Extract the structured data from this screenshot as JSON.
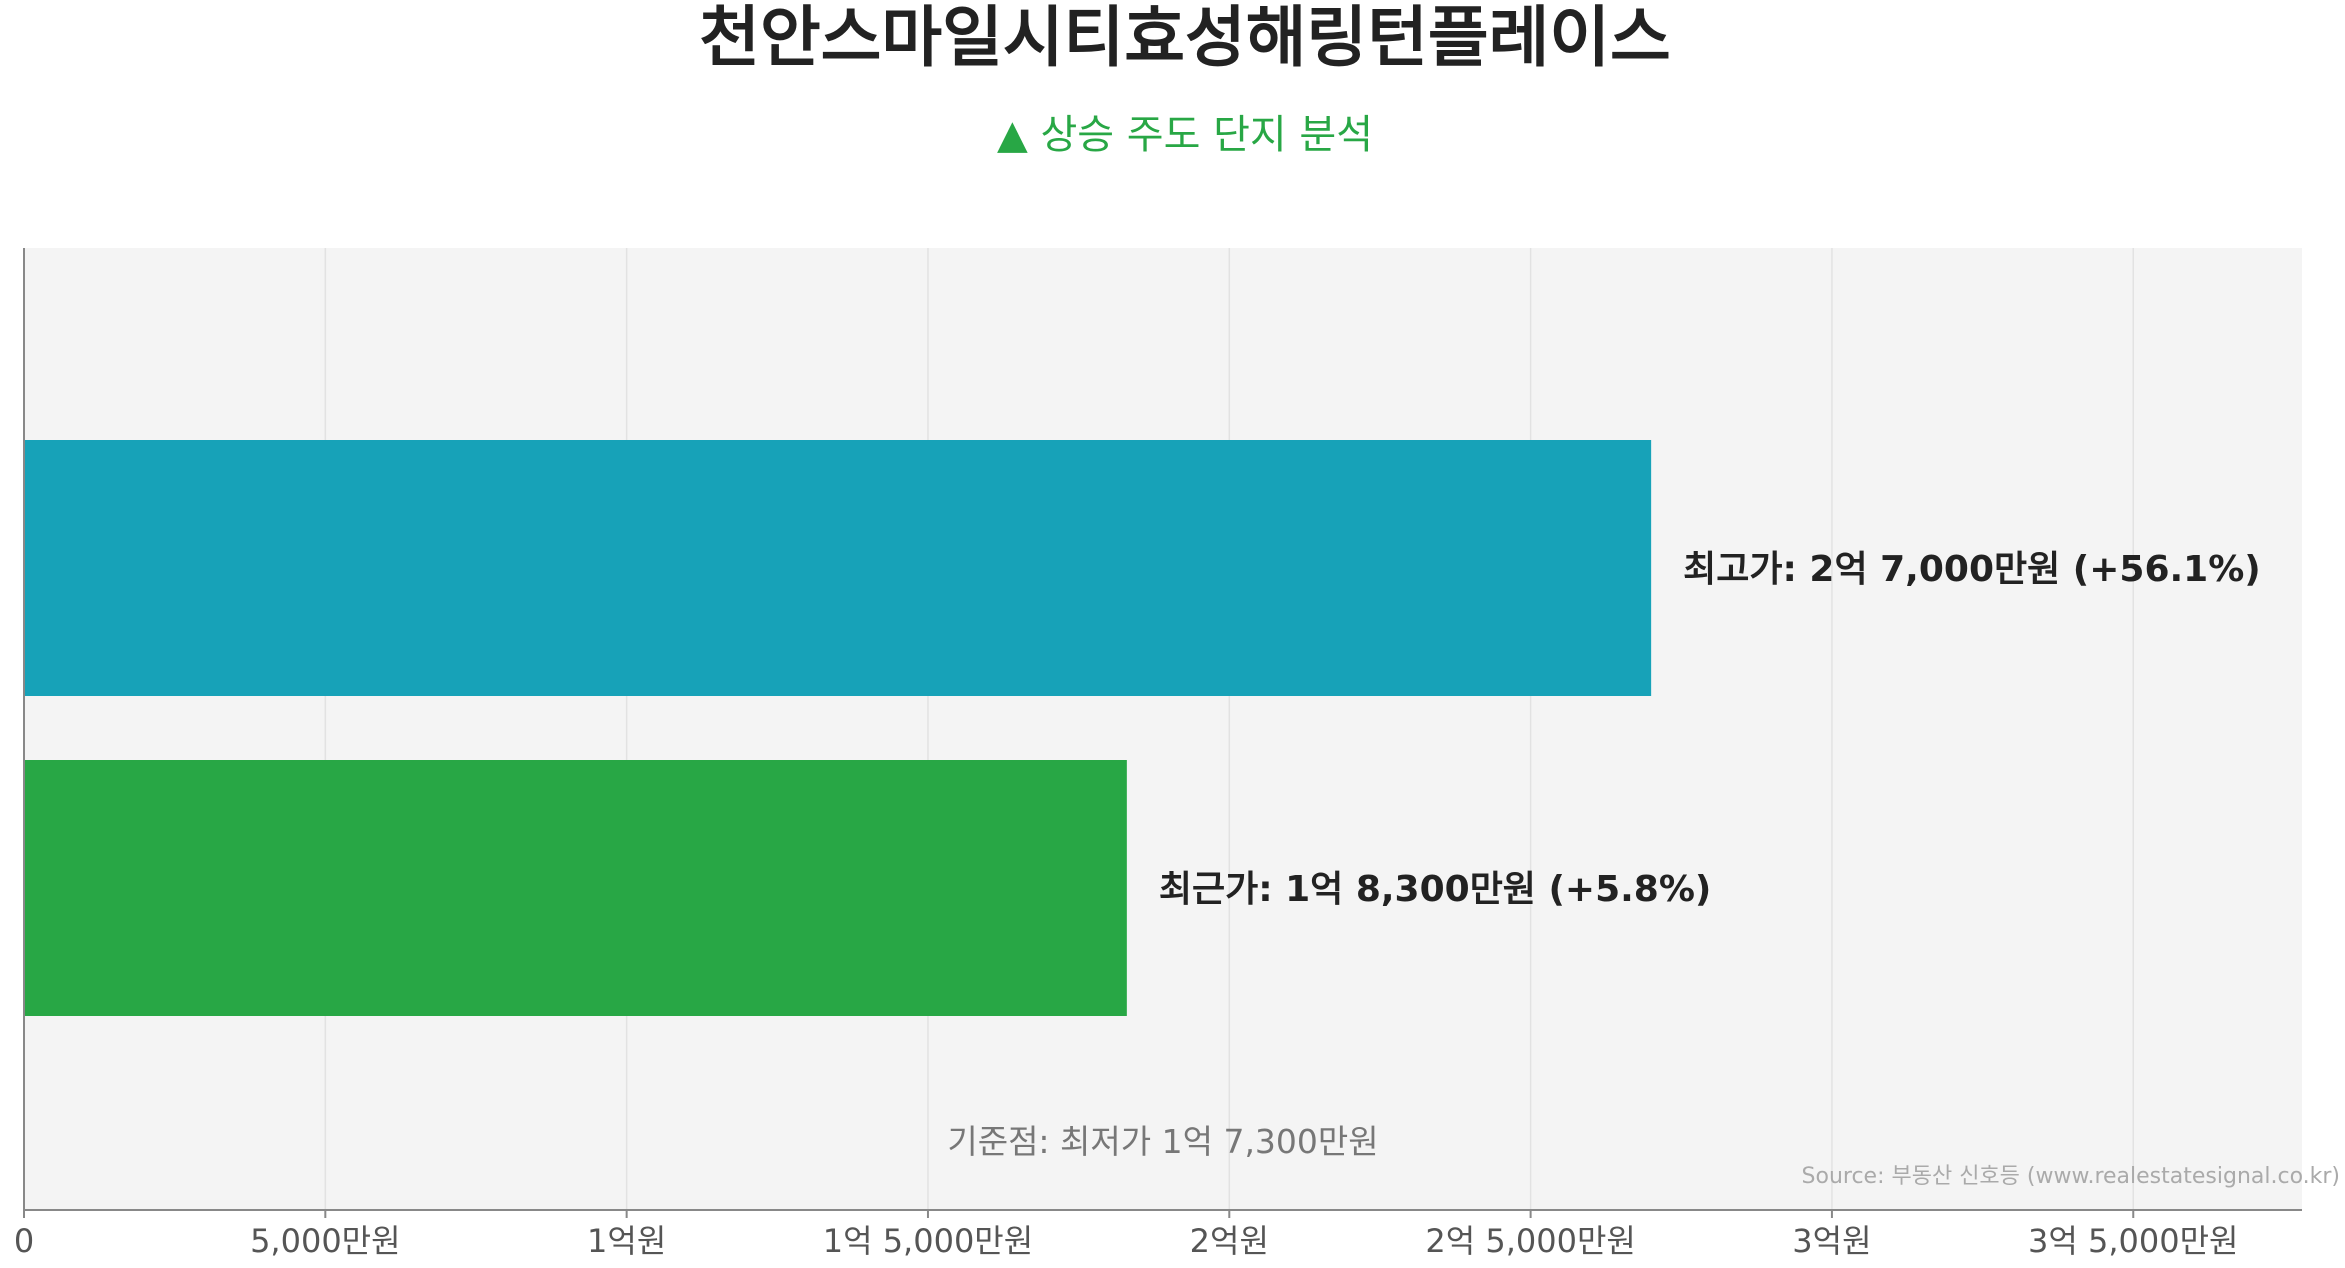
{
  "chart_data": {
    "type": "bar",
    "orientation": "horizontal",
    "title": "천안스마일시티효성해링턴플레이스",
    "subtitle": "▲ 상승 주도 단지 분석",
    "xlim": [
      0,
      378000000
    ],
    "x_ticks": [
      {
        "value": 0,
        "label": "0"
      },
      {
        "value": 50000000,
        "label": "5,000만원"
      },
      {
        "value": 100000000,
        "label": "1억원"
      },
      {
        "value": 150000000,
        "label": "1억 5,000만원"
      },
      {
        "value": 200000000,
        "label": "2억원"
      },
      {
        "value": 250000000,
        "label": "2억 5,000만원"
      },
      {
        "value": 300000000,
        "label": "3억원"
      },
      {
        "value": 350000000,
        "label": "3억 5,000만원"
      }
    ],
    "grid": true,
    "series": [
      {
        "category": "최고가",
        "value": 270000000,
        "label": "최고가: 2억 7,000만원 (+56.1%)"
      },
      {
        "category": "최근가",
        "value": 183000000,
        "label": "최근가: 1억 8,300만원 (+5.8%)"
      }
    ],
    "baseline_note": "기준점: 최저가 1억 7,300만원",
    "source": "Source: 부동산 신호등 (www.realestatesignal.co.kr)"
  },
  "colors": {
    "title": "#222222",
    "subtitle": "#28a745",
    "plot_background": "#f4f4f4",
    "bar_high": "#17a2b8",
    "bar_recent": "#28a745",
    "grid": "#e2e2e2",
    "axis": "#888888",
    "tick_text": "#555555",
    "baseline_text": "#777777",
    "source_text": "#aaaaaa"
  }
}
